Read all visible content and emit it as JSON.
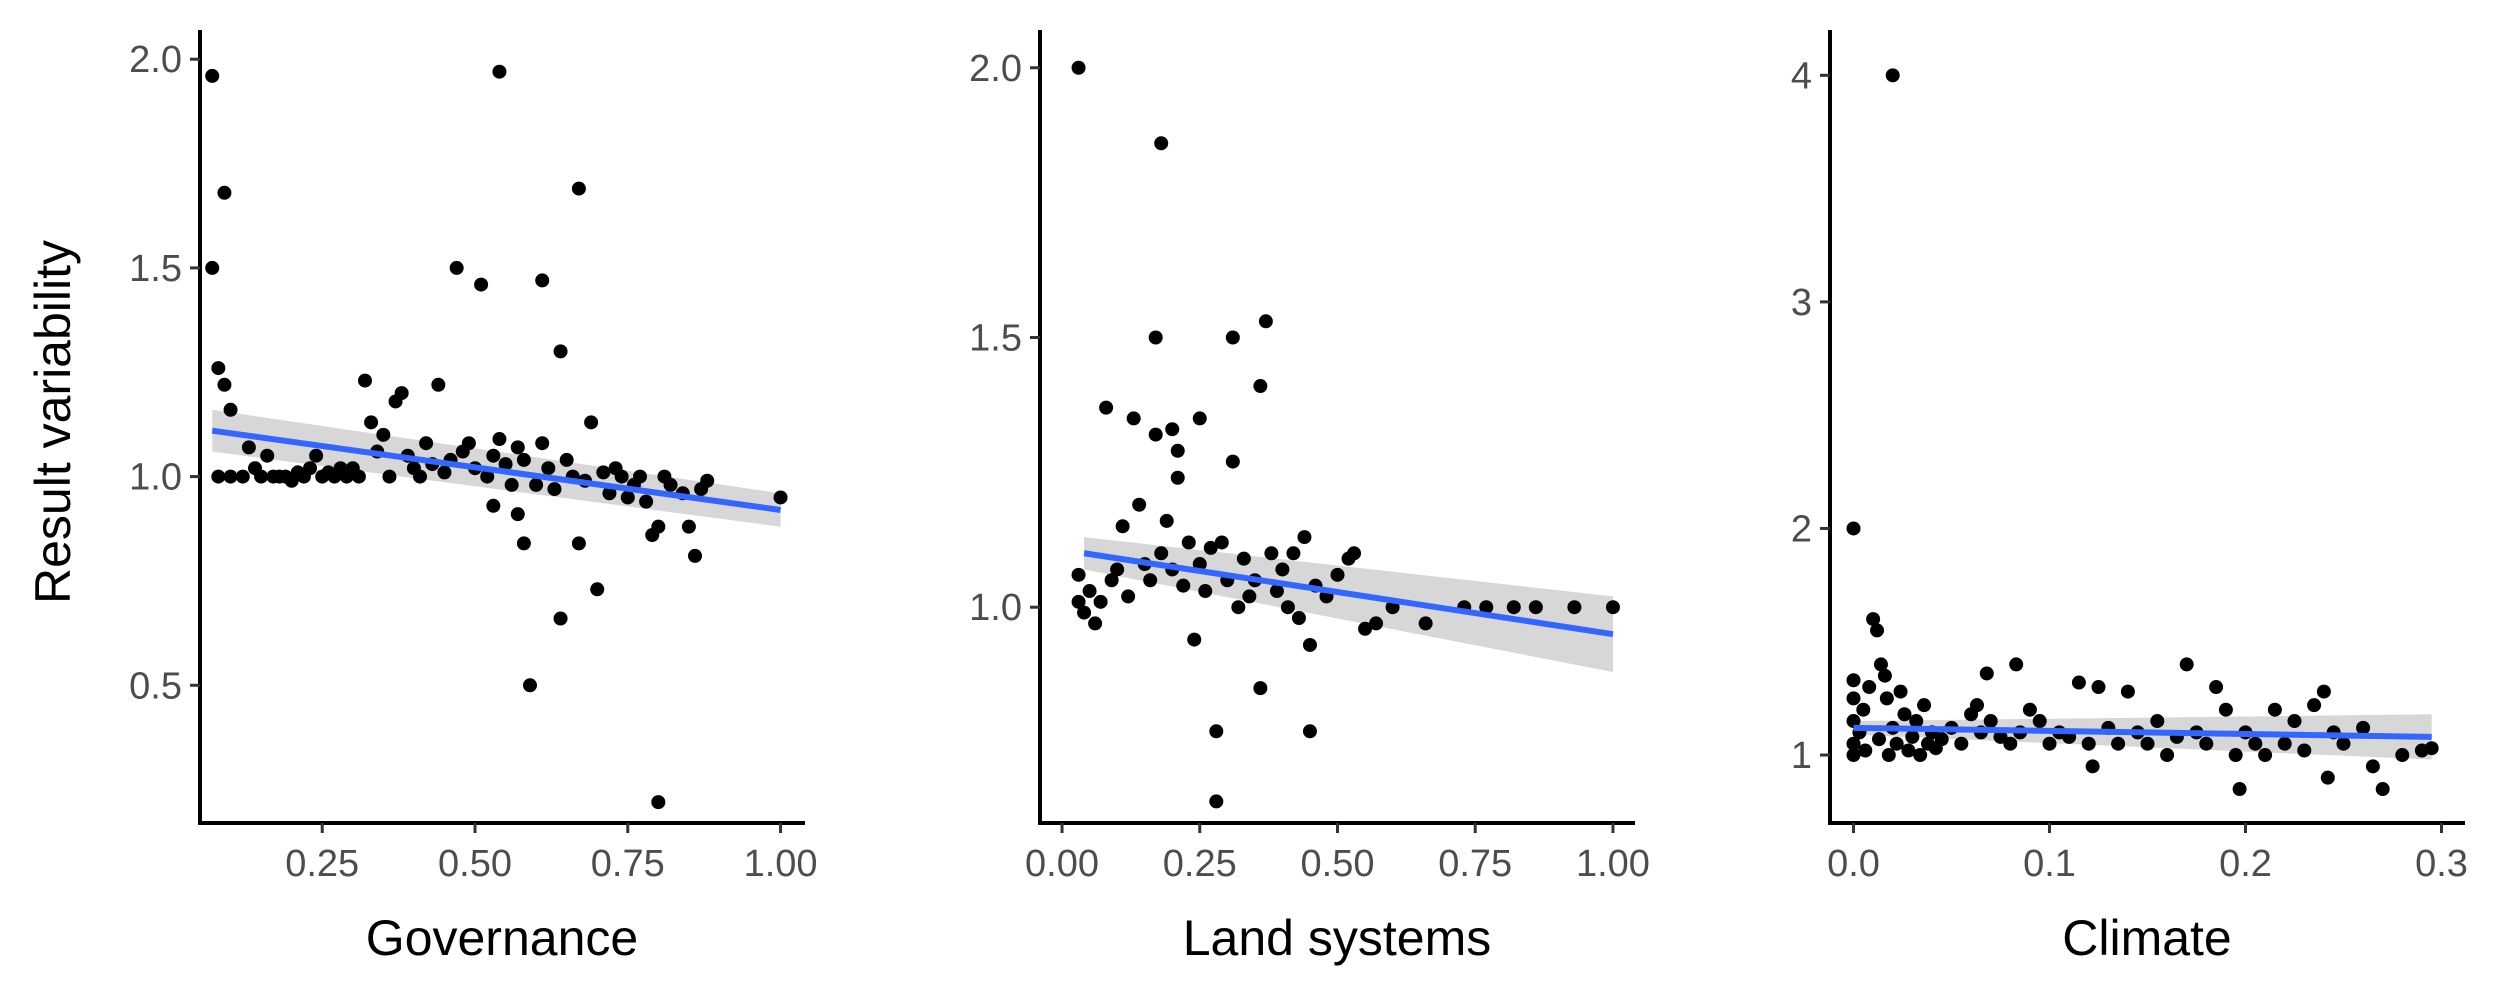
{
  "colors": {
    "point": "#000000",
    "fit_line": "#3366FF",
    "band": "#d3d3d3",
    "axis": "#000000",
    "tick_text": "#4d4d4d"
  },
  "chart_data": [
    {
      "type": "scatter",
      "title": "",
      "xlabel": "Governance",
      "ylabel": "Result variability",
      "xlim": [
        0.05,
        1.04
      ],
      "ylim": [
        0.17,
        2.07
      ],
      "xticks": [
        0.25,
        0.5,
        0.75,
        1.0
      ],
      "xtick_labels": [
        "0.25",
        "0.50",
        "0.75",
        "1.00"
      ],
      "yticks": [
        0.5,
        1.0,
        1.5,
        2.0
      ],
      "ytick_labels": [
        "0.5",
        "1.0",
        "1.5",
        "2.0"
      ],
      "grid": false,
      "fit": {
        "method": "linear",
        "x": [
          0.07,
          1.0
        ],
        "y": [
          1.11,
          0.92
        ],
        "ci_lower": [
          1.06,
          0.88
        ],
        "ci_upper": [
          1.16,
          0.96
        ]
      },
      "points": [
        [
          0.07,
          1.96
        ],
        [
          0.07,
          1.5
        ],
        [
          0.08,
          1.26
        ],
        [
          0.09,
          1.68
        ],
        [
          0.09,
          1.22
        ],
        [
          0.1,
          1.16
        ],
        [
          0.08,
          1.0
        ],
        [
          0.1,
          1.0
        ],
        [
          0.12,
          1.0
        ],
        [
          0.13,
          1.07
        ],
        [
          0.14,
          1.02
        ],
        [
          0.15,
          1.0
        ],
        [
          0.16,
          1.05
        ],
        [
          0.17,
          1.0
        ],
        [
          0.18,
          1.0
        ],
        [
          0.19,
          1.0
        ],
        [
          0.2,
          0.99
        ],
        [
          0.21,
          1.01
        ],
        [
          0.22,
          1.0
        ],
        [
          0.23,
          1.02
        ],
        [
          0.24,
          1.05
        ],
        [
          0.25,
          1.0
        ],
        [
          0.26,
          1.01
        ],
        [
          0.27,
          1.0
        ],
        [
          0.28,
          1.02
        ],
        [
          0.29,
          1.0
        ],
        [
          0.3,
          1.02
        ],
        [
          0.31,
          1.0
        ],
        [
          0.32,
          1.23
        ],
        [
          0.33,
          1.13
        ],
        [
          0.34,
          1.06
        ],
        [
          0.35,
          1.1
        ],
        [
          0.36,
          1.0
        ],
        [
          0.37,
          1.18
        ],
        [
          0.38,
          1.2
        ],
        [
          0.39,
          1.05
        ],
        [
          0.4,
          1.02
        ],
        [
          0.41,
          1.0
        ],
        [
          0.42,
          1.08
        ],
        [
          0.43,
          1.03
        ],
        [
          0.44,
          1.22
        ],
        [
          0.45,
          1.01
        ],
        [
          0.46,
          1.04
        ],
        [
          0.47,
          1.5
        ],
        [
          0.48,
          1.06
        ],
        [
          0.49,
          1.08
        ],
        [
          0.5,
          1.02
        ],
        [
          0.51,
          1.46
        ],
        [
          0.52,
          1.0
        ],
        [
          0.53,
          1.05
        ],
        [
          0.53,
          0.93
        ],
        [
          0.54,
          1.97
        ],
        [
          0.54,
          1.09
        ],
        [
          0.55,
          1.03
        ],
        [
          0.56,
          0.98
        ],
        [
          0.57,
          1.07
        ],
        [
          0.57,
          0.91
        ],
        [
          0.58,
          0.84
        ],
        [
          0.58,
          1.04
        ],
        [
          0.59,
          0.5
        ],
        [
          0.6,
          0.98
        ],
        [
          0.61,
          1.47
        ],
        [
          0.61,
          1.08
        ],
        [
          0.62,
          1.02
        ],
        [
          0.63,
          0.97
        ],
        [
          0.64,
          1.3
        ],
        [
          0.64,
          0.66
        ],
        [
          0.65,
          1.04
        ],
        [
          0.66,
          1.0
        ],
        [
          0.67,
          0.84
        ],
        [
          0.67,
          1.69
        ],
        [
          0.68,
          0.99
        ],
        [
          0.69,
          1.13
        ],
        [
          0.7,
          0.73
        ],
        [
          0.71,
          1.01
        ],
        [
          0.72,
          0.96
        ],
        [
          0.73,
          1.02
        ],
        [
          0.74,
          1.0
        ],
        [
          0.75,
          0.95
        ],
        [
          0.76,
          0.98
        ],
        [
          0.77,
          1.0
        ],
        [
          0.78,
          0.94
        ],
        [
          0.79,
          0.86
        ],
        [
          0.8,
          0.88
        ],
        [
          0.8,
          0.22
        ],
        [
          0.81,
          1.0
        ],
        [
          0.82,
          0.98
        ],
        [
          0.84,
          0.96
        ],
        [
          0.85,
          0.88
        ],
        [
          0.86,
          0.81
        ],
        [
          0.87,
          0.97
        ],
        [
          0.88,
          0.99
        ],
        [
          1.0,
          0.95
        ]
      ]
    },
    {
      "type": "scatter",
      "title": "",
      "xlabel": "Land systems",
      "ylabel": "",
      "xlim": [
        -0.04,
        1.04
      ],
      "ylim": [
        0.6,
        2.07
      ],
      "xticks": [
        0.0,
        0.25,
        0.5,
        0.75,
        1.0
      ],
      "xtick_labels": [
        "0.00",
        "0.25",
        "0.50",
        "0.75",
        "1.00"
      ],
      "yticks": [
        1.0,
        1.5,
        2.0
      ],
      "ytick_labels": [
        "1.0",
        "1.5",
        "2.0"
      ],
      "grid": false,
      "fit": {
        "method": "linear",
        "x": [
          0.04,
          1.0
        ],
        "y": [
          1.1,
          0.95
        ],
        "ci_lower": [
          1.07,
          0.88
        ],
        "ci_upper": [
          1.13,
          1.02
        ]
      },
      "points": [
        [
          0.03,
          2.0
        ],
        [
          0.03,
          1.06
        ],
        [
          0.03,
          1.01
        ],
        [
          0.04,
          0.99
        ],
        [
          0.05,
          1.03
        ],
        [
          0.06,
          0.97
        ],
        [
          0.07,
          1.01
        ],
        [
          0.08,
          1.37
        ],
        [
          0.09,
          1.05
        ],
        [
          0.1,
          1.07
        ],
        [
          0.11,
          1.15
        ],
        [
          0.12,
          1.02
        ],
        [
          0.13,
          1.35
        ],
        [
          0.14,
          1.19
        ],
        [
          0.15,
          1.08
        ],
        [
          0.16,
          1.05
        ],
        [
          0.17,
          1.5
        ],
        [
          0.17,
          1.32
        ],
        [
          0.18,
          1.86
        ],
        [
          0.18,
          1.1
        ],
        [
          0.19,
          1.16
        ],
        [
          0.2,
          1.07
        ],
        [
          0.2,
          1.33
        ],
        [
          0.21,
          1.29
        ],
        [
          0.21,
          1.24
        ],
        [
          0.22,
          1.04
        ],
        [
          0.23,
          1.12
        ],
        [
          0.24,
          0.94
        ],
        [
          0.25,
          1.35
        ],
        [
          0.25,
          1.08
        ],
        [
          0.26,
          1.03
        ],
        [
          0.27,
          1.11
        ],
        [
          0.28,
          0.77
        ],
        [
          0.28,
          0.64
        ],
        [
          0.29,
          1.12
        ],
        [
          0.3,
          1.05
        ],
        [
          0.31,
          1.27
        ],
        [
          0.31,
          1.5
        ],
        [
          0.32,
          1.0
        ],
        [
          0.33,
          1.09
        ],
        [
          0.34,
          1.02
        ],
        [
          0.35,
          1.05
        ],
        [
          0.36,
          0.85
        ],
        [
          0.36,
          1.41
        ],
        [
          0.37,
          1.53
        ],
        [
          0.38,
          1.1
        ],
        [
          0.39,
          1.03
        ],
        [
          0.4,
          1.07
        ],
        [
          0.41,
          1.0
        ],
        [
          0.42,
          1.1
        ],
        [
          0.43,
          0.98
        ],
        [
          0.44,
          1.13
        ],
        [
          0.45,
          0.93
        ],
        [
          0.45,
          0.77
        ],
        [
          0.46,
          1.04
        ],
        [
          0.48,
          1.02
        ],
        [
          0.5,
          1.06
        ],
        [
          0.52,
          1.09
        ],
        [
          0.53,
          1.1
        ],
        [
          0.55,
          0.96
        ],
        [
          0.57,
          0.97
        ],
        [
          0.6,
          1.0
        ],
        [
          0.66,
          0.97
        ],
        [
          0.73,
          1.0
        ],
        [
          0.77,
          1.0
        ],
        [
          0.82,
          1.0
        ],
        [
          0.86,
          1.0
        ],
        [
          0.93,
          1.0
        ],
        [
          1.0,
          1.0
        ]
      ]
    },
    {
      "type": "scatter",
      "title": "",
      "xlabel": "Climate",
      "ylabel": "",
      "xlim": [
        -0.012,
        0.312
      ],
      "ylim": [
        0.7,
        4.2
      ],
      "xticks": [
        0.0,
        0.1,
        0.2,
        0.3
      ],
      "xtick_labels": [
        "0.0",
        "0.1",
        "0.2",
        "0.3"
      ],
      "yticks": [
        1,
        2,
        3,
        4
      ],
      "ytick_labels": [
        "1",
        "2",
        "3",
        "4"
      ],
      "grid": false,
      "fit": {
        "method": "linear",
        "x": [
          0.0,
          0.295
        ],
        "y": [
          1.12,
          1.08
        ],
        "ci_lower": [
          1.09,
          0.98
        ],
        "ci_upper": [
          1.15,
          1.18
        ]
      },
      "points": [
        [
          0.02,
          4.0
        ],
        [
          0.0,
          2.0
        ],
        [
          0.0,
          1.33
        ],
        [
          0.0,
          1.25
        ],
        [
          0.0,
          1.15
        ],
        [
          0.0,
          1.05
        ],
        [
          0.0,
          1.0
        ],
        [
          0.003,
          1.1
        ],
        [
          0.005,
          1.2
        ],
        [
          0.006,
          1.02
        ],
        [
          0.008,
          1.3
        ],
        [
          0.01,
          1.6
        ],
        [
          0.012,
          1.55
        ],
        [
          0.013,
          1.07
        ],
        [
          0.014,
          1.4
        ],
        [
          0.016,
          1.35
        ],
        [
          0.017,
          1.25
        ],
        [
          0.018,
          1.0
        ],
        [
          0.02,
          1.12
        ],
        [
          0.022,
          1.05
        ],
        [
          0.024,
          1.28
        ],
        [
          0.026,
          1.18
        ],
        [
          0.028,
          1.02
        ],
        [
          0.03,
          1.08
        ],
        [
          0.032,
          1.15
        ],
        [
          0.034,
          1.0
        ],
        [
          0.036,
          1.22
        ],
        [
          0.038,
          1.05
        ],
        [
          0.04,
          1.1
        ],
        [
          0.042,
          1.03
        ],
        [
          0.045,
          1.07
        ],
        [
          0.05,
          1.12
        ],
        [
          0.055,
          1.05
        ],
        [
          0.06,
          1.18
        ],
        [
          0.063,
          1.22
        ],
        [
          0.065,
          1.1
        ],
        [
          0.068,
          1.36
        ],
        [
          0.07,
          1.15
        ],
        [
          0.075,
          1.08
        ],
        [
          0.08,
          1.05
        ],
        [
          0.083,
          1.4
        ],
        [
          0.085,
          1.1
        ],
        [
          0.09,
          1.2
        ],
        [
          0.095,
          1.15
        ],
        [
          0.1,
          1.05
        ],
        [
          0.105,
          1.1
        ],
        [
          0.11,
          1.08
        ],
        [
          0.115,
          1.32
        ],
        [
          0.12,
          1.05
        ],
        [
          0.122,
          0.95
        ],
        [
          0.125,
          1.3
        ],
        [
          0.13,
          1.12
        ],
        [
          0.135,
          1.05
        ],
        [
          0.14,
          1.28
        ],
        [
          0.145,
          1.1
        ],
        [
          0.15,
          1.05
        ],
        [
          0.155,
          1.15
        ],
        [
          0.16,
          1.0
        ],
        [
          0.165,
          1.08
        ],
        [
          0.17,
          1.4
        ],
        [
          0.175,
          1.1
        ],
        [
          0.18,
          1.05
        ],
        [
          0.185,
          1.3
        ],
        [
          0.19,
          1.2
        ],
        [
          0.195,
          1.0
        ],
        [
          0.197,
          0.85
        ],
        [
          0.2,
          1.1
        ],
        [
          0.205,
          1.05
        ],
        [
          0.21,
          1.0
        ],
        [
          0.215,
          1.2
        ],
        [
          0.22,
          1.05
        ],
        [
          0.225,
          1.15
        ],
        [
          0.23,
          1.02
        ],
        [
          0.235,
          1.22
        ],
        [
          0.24,
          1.28
        ],
        [
          0.242,
          0.9
        ],
        [
          0.245,
          1.1
        ],
        [
          0.25,
          1.05
        ],
        [
          0.26,
          1.12
        ],
        [
          0.265,
          0.95
        ],
        [
          0.27,
          0.85
        ],
        [
          0.28,
          1.0
        ],
        [
          0.29,
          1.02
        ],
        [
          0.295,
          1.03
        ]
      ]
    }
  ]
}
